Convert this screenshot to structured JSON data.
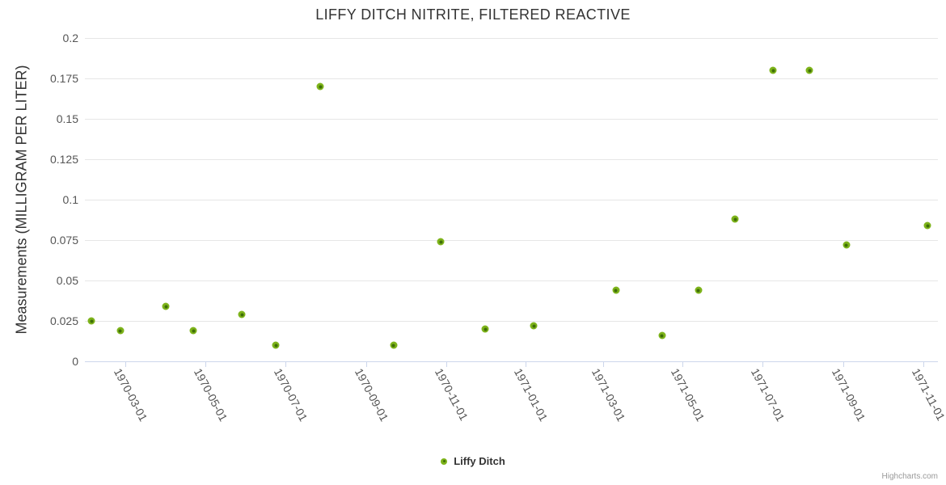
{
  "chart_title": "LIFFY DITCH NITRITE, FILTERED REACTIVE",
  "credits_label": "Highcharts.com",
  "chart_data": {
    "type": "scatter",
    "title": "LIFFY DITCH NITRITE, FILTERED REACTIVE",
    "xlabel": "",
    "ylabel": "Measurements (MILLIGRAM PER LITER)",
    "ylim": [
      0,
      0.2
    ],
    "grid": "horizontal-only",
    "legend_position": "bottom-center",
    "colors": {
      "marker_fill": "#7db31a",
      "marker_core": "#3e6e08",
      "gridline": "#e6e6e6",
      "axis_line": "#ccd6eb",
      "title_text": "#333333",
      "tick_text": "#555555"
    },
    "yaxis": {
      "ticks": [
        {
          "v": 0.2,
          "label": "0.2"
        },
        {
          "v": 0.175,
          "label": "0.175"
        },
        {
          "v": 0.15,
          "label": "0.15"
        },
        {
          "v": 0.125,
          "label": "0.125"
        },
        {
          "v": 0.1,
          "label": "0.1"
        },
        {
          "v": 0.075,
          "label": "0.075"
        },
        {
          "v": 0.05,
          "label": "0.05"
        },
        {
          "v": 0.025,
          "label": "0.025"
        },
        {
          "v": 0,
          "label": "0"
        }
      ]
    },
    "xaxis": {
      "min": "1970-01-29",
      "max": "1971-11-12",
      "ticks": [
        "1970-03-01",
        "1970-05-01",
        "1970-07-01",
        "1970-09-01",
        "1970-11-01",
        "1971-01-01",
        "1971-03-01",
        "1971-05-01",
        "1971-07-01",
        "1971-09-01",
        "1971-11-01"
      ]
    },
    "series": [
      {
        "name": "Liffy Ditch",
        "points": [
          {
            "date": "1970-02-03",
            "value": 0.025
          },
          {
            "date": "1970-02-25",
            "value": 0.019
          },
          {
            "date": "1970-04-01",
            "value": 0.034
          },
          {
            "date": "1970-04-22",
            "value": 0.019
          },
          {
            "date": "1970-05-29",
            "value": 0.029
          },
          {
            "date": "1970-06-24",
            "value": 0.01
          },
          {
            "date": "1970-07-28",
            "value": 0.17
          },
          {
            "date": "1970-09-22",
            "value": 0.01
          },
          {
            "date": "1970-10-28",
            "value": 0.074
          },
          {
            "date": "1970-12-01",
            "value": 0.02
          },
          {
            "date": "1971-01-07",
            "value": 0.022
          },
          {
            "date": "1971-03-11",
            "value": 0.044
          },
          {
            "date": "1971-04-15",
            "value": 0.016
          },
          {
            "date": "1971-05-13",
            "value": 0.044
          },
          {
            "date": "1971-06-10",
            "value": 0.088
          },
          {
            "date": "1971-07-09",
            "value": 0.18
          },
          {
            "date": "1971-08-06",
            "value": 0.18
          },
          {
            "date": "1971-09-03",
            "value": 0.072
          },
          {
            "date": "1971-11-04",
            "value": 0.084
          }
        ]
      }
    ]
  }
}
